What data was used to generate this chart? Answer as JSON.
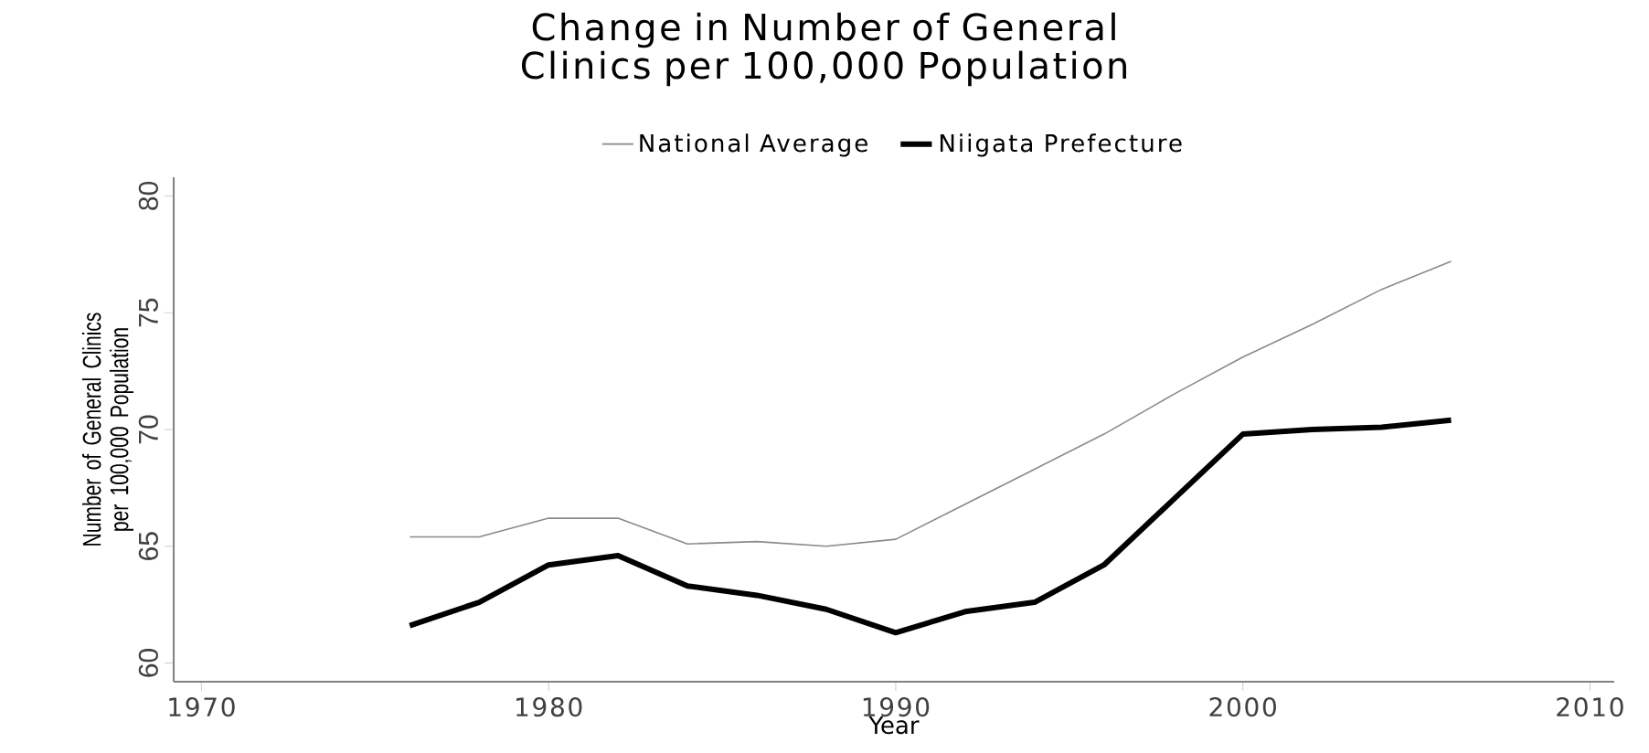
{
  "chart_data": {
    "type": "line",
    "title": "Change in Number of General Clinics per 100,000 Population",
    "xlabel": "Year",
    "ylabel": "Number of General Clinics per 100,000 Population",
    "x": [
      1976,
      1978,
      1980,
      1982,
      1984,
      1986,
      1988,
      1990,
      1992,
      1994,
      1996,
      1998,
      2000,
      2002,
      2004,
      2006
    ],
    "series": [
      {
        "name": "National Average",
        "color": "#8a8a8a",
        "values": [
          65.4,
          65.4,
          66.2,
          66.2,
          65.1,
          65.2,
          65.0,
          65.3,
          66.8,
          68.3,
          69.8,
          71.5,
          73.1,
          74.5,
          76.0,
          77.2
        ]
      },
      {
        "name": "Niigata Prefecture",
        "color": "#000000",
        "values": [
          61.6,
          62.6,
          64.2,
          64.6,
          63.3,
          62.9,
          62.3,
          61.3,
          62.2,
          62.6,
          64.2,
          67.0,
          69.8,
          70.0,
          70.1,
          70.4
        ]
      }
    ],
    "xlim": [
      1969.2,
      2010.7
    ],
    "ylim": [
      59.2,
      80.8
    ],
    "xticks": [
      1970,
      1980,
      1990,
      2000,
      2010
    ],
    "yticks": [
      60,
      65,
      70,
      75,
      80
    ],
    "grid": false,
    "legend": "top",
    "marker": "none",
    "line_style": "solid"
  }
}
